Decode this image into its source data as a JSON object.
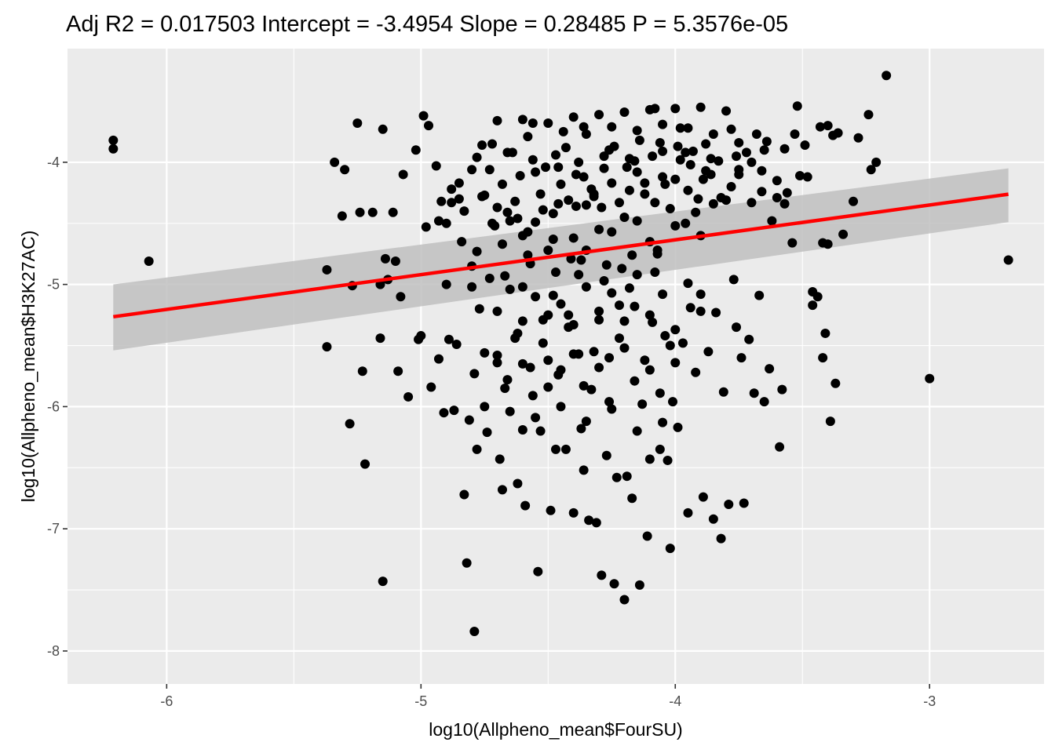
{
  "chart_data": {
    "type": "scatter",
    "title": "Adj R2 =  0.017503 Intercept = -3.4954  Slope = 0.28485  P = 5.3576e-05",
    "xlabel": "log10(Allpheno_mean$FourSU)",
    "ylabel": "log10(Allpheno_mean$H3K27AC)",
    "xlim": [
      -6.39,
      -2.55
    ],
    "ylim": [
      -8.27,
      -3.07
    ],
    "x_ticks": [
      -6,
      -5,
      -4,
      -3
    ],
    "x_tick_labels": [
      "-6",
      "-5",
      "-4",
      "-3"
    ],
    "y_ticks": [
      -8,
      -7,
      -6,
      -5,
      -4
    ],
    "y_tick_labels": [
      "-8",
      "-7",
      "-6",
      "-5",
      "-4"
    ],
    "grid": true,
    "colors": {
      "panel_background": "#ebebeb",
      "grid": "#ffffff",
      "points": "#000000",
      "fit_line": "#ff0000",
      "confidence_band": "#bfbfbf"
    },
    "fit": {
      "intercept": -3.4954,
      "slope": 0.28485,
      "x_range": [
        -6.21,
        -2.69
      ],
      "ci_lower": [
        -5.54,
        -4.49
      ],
      "ci_upper": [
        -5.0,
        -4.05
      ]
    },
    "points": [
      [
        -6.21,
        -3.82
      ],
      [
        -6.21,
        -3.89
      ],
      [
        -6.07,
        -4.81
      ],
      [
        -5.37,
        -4.88
      ],
      [
        -5.37,
        -5.51
      ],
      [
        -5.34,
        -4.0
      ],
      [
        -5.31,
        -4.44
      ],
      [
        -5.3,
        -4.06
      ],
      [
        -5.28,
        -6.14
      ],
      [
        -5.27,
        -5.01
      ],
      [
        -5.25,
        -3.68
      ],
      [
        -5.24,
        -4.41
      ],
      [
        -5.23,
        -5.71
      ],
      [
        -5.22,
        -6.47
      ],
      [
        -5.19,
        -4.41
      ],
      [
        -5.16,
        -5.0
      ],
      [
        -5.16,
        -5.44
      ],
      [
        -5.15,
        -3.73
      ],
      [
        -5.15,
        -7.43
      ],
      [
        -5.14,
        -4.79
      ],
      [
        -5.13,
        -4.96
      ],
      [
        -5.11,
        -4.41
      ],
      [
        -5.1,
        -4.81
      ],
      [
        -5.09,
        -5.71
      ],
      [
        -5.08,
        -5.1
      ],
      [
        -5.07,
        -4.1
      ],
      [
        -5.05,
        -5.92
      ],
      [
        -5.02,
        -3.9
      ],
      [
        -5.01,
        -5.45
      ],
      [
        -5.0,
        -5.42
      ],
      [
        -4.99,
        -3.62
      ],
      [
        -4.98,
        -4.53
      ],
      [
        -4.97,
        -3.7
      ],
      [
        -4.96,
        -5.84
      ],
      [
        -4.94,
        -4.03
      ],
      [
        -4.93,
        -5.61
      ],
      [
        -4.92,
        -4.32
      ],
      [
        -4.91,
        -6.05
      ],
      [
        -4.9,
        -4.5
      ],
      [
        -4.89,
        -5.45
      ],
      [
        -4.88,
        -4.22
      ],
      [
        -4.87,
        -6.03
      ],
      [
        -4.86,
        -5.49
      ],
      [
        -4.85,
        -4.3
      ],
      [
        -4.84,
        -4.65
      ],
      [
        -4.83,
        -6.72
      ],
      [
        -4.82,
        -7.28
      ],
      [
        -4.81,
        -6.11
      ],
      [
        -4.8,
        -4.85
      ],
      [
        -4.79,
        -5.73
      ],
      [
        -4.79,
        -7.84
      ],
      [
        -4.78,
        -6.35
      ],
      [
        -4.77,
        -5.2
      ],
      [
        -4.76,
        -4.28
      ],
      [
        -4.75,
        -5.56
      ],
      [
        -4.74,
        -6.21
      ],
      [
        -4.73,
        -4.95
      ],
      [
        -4.72,
        -3.85
      ],
      [
        -4.71,
        -4.52
      ],
      [
        -4.7,
        -5.64
      ],
      [
        -4.69,
        -6.43
      ],
      [
        -4.68,
        -6.68
      ],
      [
        -4.67,
        -5.85
      ],
      [
        -4.66,
        -4.41
      ],
      [
        -4.65,
        -5.04
      ],
      [
        -4.64,
        -3.92
      ],
      [
        -4.63,
        -5.44
      ],
      [
        -4.62,
        -6.63
      ],
      [
        -4.61,
        -4.11
      ],
      [
        -4.6,
        -6.19
      ],
      [
        -4.6,
        -5.02
      ],
      [
        -4.59,
        -6.81
      ],
      [
        -4.58,
        -4.57
      ],
      [
        -4.57,
        -5.68
      ],
      [
        -4.56,
        -3.68
      ],
      [
        -4.55,
        -4.49
      ],
      [
        -4.54,
        -7.35
      ],
      [
        -4.53,
        -6.2
      ],
      [
        -4.52,
        -5.29
      ],
      [
        -4.51,
        -4.04
      ],
      [
        -4.5,
        -5.84
      ],
      [
        -4.49,
        -6.85
      ],
      [
        -4.48,
        -5.09
      ],
      [
        -4.47,
        -6.35
      ],
      [
        -4.46,
        -4.34
      ],
      [
        -4.45,
        -5.7
      ],
      [
        -4.44,
        -3.75
      ],
      [
        -4.43,
        -6.35
      ],
      [
        -4.42,
        -5.25
      ],
      [
        -4.41,
        -4.79
      ],
      [
        -4.4,
        -6.87
      ],
      [
        -4.39,
        -4.36
      ],
      [
        -4.38,
        -5.57
      ],
      [
        -4.37,
        -6.18
      ],
      [
        -4.36,
        -3.71
      ],
      [
        -4.36,
        -6.52
      ],
      [
        -4.35,
        -4.72
      ],
      [
        -4.34,
        -6.93
      ],
      [
        -4.33,
        -5.86
      ],
      [
        -4.32,
        -4.26
      ],
      [
        -4.31,
        -6.95
      ],
      [
        -4.3,
        -5.29
      ],
      [
        -4.29,
        -7.38
      ],
      [
        -4.28,
        -4.05
      ],
      [
        -4.27,
        -6.4
      ],
      [
        -4.26,
        -5.6
      ],
      [
        -4.25,
        -4.57
      ],
      [
        -4.24,
        -7.45
      ],
      [
        -4.23,
        -6.58
      ],
      [
        -4.22,
        -5.17
      ],
      [
        -4.21,
        -4.87
      ],
      [
        -4.2,
        -7.58
      ],
      [
        -4.19,
        -6.57
      ],
      [
        -4.18,
        -3.97
      ],
      [
        -4.17,
        -6.75
      ],
      [
        -4.16,
        -5.18
      ],
      [
        -4.15,
        -4.48
      ],
      [
        -4.14,
        -7.46
      ],
      [
        -4.13,
        -5.98
      ],
      [
        -4.12,
        -4.17
      ],
      [
        -4.11,
        -7.06
      ],
      [
        -4.1,
        -6.43
      ],
      [
        -4.09,
        -5.31
      ],
      [
        -4.08,
        -3.56
      ],
      [
        -4.07,
        -4.75
      ],
      [
        -4.06,
        -6.35
      ],
      [
        -4.05,
        -3.91
      ],
      [
        -4.04,
        -5.42
      ],
      [
        -4.03,
        -6.44
      ],
      [
        -4.02,
        -7.16
      ],
      [
        -4.01,
        -5.96
      ],
      [
        -4.0,
        -4.14
      ],
      [
        -3.99,
        -6.17
      ],
      [
        -3.98,
        -3.72
      ],
      [
        -3.97,
        -5.48
      ],
      [
        -3.96,
        -4.5
      ],
      [
        -3.95,
        -6.87
      ],
      [
        -3.94,
        -5.19
      ],
      [
        -3.93,
        -3.91
      ],
      [
        -3.92,
        -5.72
      ],
      [
        -3.91,
        -4.3
      ],
      [
        -3.9,
        -5.08
      ],
      [
        -3.89,
        -6.74
      ],
      [
        -3.88,
        -3.85
      ],
      [
        -3.87,
        -5.55
      ],
      [
        -3.86,
        -4.1
      ],
      [
        -3.85,
        -6.92
      ],
      [
        -3.84,
        -5.23
      ],
      [
        -3.83,
        -3.99
      ],
      [
        -3.82,
        -7.08
      ],
      [
        -3.81,
        -5.88
      ],
      [
        -3.8,
        -4.31
      ],
      [
        -3.79,
        -6.8
      ],
      [
        -3.78,
        -3.73
      ],
      [
        -3.77,
        -4.96
      ],
      [
        -3.76,
        -5.35
      ],
      [
        -3.75,
        -4.06
      ],
      [
        -3.74,
        -5.6
      ],
      [
        -3.73,
        -6.79
      ],
      [
        -3.72,
        -3.92
      ],
      [
        -3.71,
        -5.45
      ],
      [
        -3.7,
        -4.33
      ],
      [
        -3.69,
        -5.89
      ],
      [
        -3.68,
        -3.77
      ],
      [
        -3.67,
        -5.09
      ],
      [
        -3.66,
        -4.24
      ],
      [
        -3.65,
        -5.96
      ],
      [
        -3.64,
        -3.83
      ],
      [
        -3.63,
        -5.69
      ],
      [
        -3.62,
        -4.48
      ],
      [
        -3.6,
        -4.29
      ],
      [
        -3.59,
        -6.33
      ],
      [
        -3.58,
        -5.86
      ],
      [
        -3.57,
        -3.89
      ],
      [
        -3.56,
        -4.25
      ],
      [
        -3.54,
        -4.66
      ],
      [
        -3.53,
        -3.77
      ],
      [
        -3.52,
        -3.54
      ],
      [
        -3.51,
        -4.11
      ],
      [
        -3.49,
        -3.86
      ],
      [
        -3.48,
        -4.12
      ],
      [
        -3.46,
        -5.06
      ],
      [
        -3.46,
        -5.17
      ],
      [
        -3.44,
        -5.1
      ],
      [
        -3.43,
        -3.71
      ],
      [
        -3.42,
        -5.6
      ],
      [
        -3.42,
        -4.66
      ],
      [
        -3.41,
        -5.4
      ],
      [
        -3.4,
        -4.67
      ],
      [
        -3.4,
        -3.7
      ],
      [
        -3.39,
        -6.12
      ],
      [
        -3.38,
        -3.78
      ],
      [
        -3.37,
        -5.81
      ],
      [
        -3.36,
        -3.76
      ],
      [
        -3.34,
        -4.59
      ],
      [
        -3.3,
        -4.32
      ],
      [
        -3.28,
        -3.8
      ],
      [
        -3.24,
        -3.61
      ],
      [
        -3.23,
        -4.06
      ],
      [
        -3.21,
        -4.0
      ],
      [
        -3.17,
        -3.29
      ],
      [
        -3.0,
        -5.77
      ],
      [
        -2.69,
        -4.8
      ],
      [
        -4.58,
        -3.79
      ],
      [
        -4.47,
        -3.94
      ],
      [
        -4.39,
        -4.1
      ],
      [
        -4.33,
        -4.22
      ],
      [
        -4.29,
        -4.37
      ],
      [
        -4.24,
        -3.87
      ],
      [
        -4.19,
        -4.04
      ],
      [
        -4.14,
        -3.82
      ],
      [
        -4.09,
        -3.95
      ],
      [
        -4.04,
        -4.18
      ],
      [
        -3.99,
        -3.87
      ],
      [
        -3.94,
        -4.02
      ],
      [
        -3.89,
        -4.14
      ],
      [
        -4.53,
        -4.26
      ],
      [
        -4.48,
        -4.42
      ],
      [
        -4.43,
        -3.88
      ],
      [
        -4.38,
        -4.0
      ],
      [
        -4.28,
        -3.95
      ],
      [
        -4.18,
        -4.23
      ],
      [
        -4.08,
        -4.33
      ],
      [
        -3.98,
        -3.98
      ],
      [
        -3.88,
        -4.07
      ],
      [
        -3.78,
        -4.2
      ],
      [
        -4.63,
        -4.32
      ],
      [
        -4.68,
        -4.18
      ],
      [
        -4.73,
        -4.06
      ],
      [
        -4.78,
        -3.96
      ],
      [
        -4.83,
        -4.4
      ],
      [
        -4.88,
        -4.33
      ],
      [
        -4.93,
        -4.48
      ],
      [
        -4.6,
        -4.6
      ],
      [
        -4.5,
        -4.72
      ],
      [
        -4.4,
        -4.62
      ],
      [
        -4.3,
        -4.55
      ],
      [
        -4.2,
        -4.45
      ],
      [
        -4.1,
        -4.65
      ],
      [
        -4.0,
        -4.52
      ],
      [
        -3.9,
        -4.6
      ],
      [
        -4.55,
        -5.1
      ],
      [
        -4.45,
        -5.16
      ],
      [
        -4.35,
        -5.02
      ],
      [
        -4.25,
        -5.07
      ],
      [
        -4.15,
        -4.92
      ],
      [
        -4.05,
        -5.08
      ],
      [
        -3.95,
        -4.99
      ],
      [
        -4.62,
        -5.4
      ],
      [
        -4.52,
        -5.48
      ],
      [
        -4.42,
        -5.35
      ],
      [
        -4.32,
        -5.55
      ],
      [
        -4.22,
        -5.44
      ],
      [
        -4.12,
        -5.62
      ],
      [
        -4.02,
        -5.5
      ],
      [
        -4.66,
        -5.78
      ],
      [
        -4.56,
        -5.91
      ],
      [
        -4.46,
        -5.74
      ],
      [
        -4.36,
        -5.83
      ],
      [
        -4.26,
        -5.96
      ],
      [
        -4.16,
        -5.79
      ],
      [
        -4.06,
        -5.89
      ],
      [
        -4.7,
        -3.66
      ],
      [
        -4.6,
        -3.65
      ],
      [
        -4.5,
        -3.68
      ],
      [
        -4.4,
        -3.63
      ],
      [
        -4.3,
        -3.61
      ],
      [
        -4.2,
        -3.59
      ],
      [
        -4.1,
        -3.57
      ],
      [
        -4.0,
        -3.56
      ],
      [
        -3.9,
        -3.55
      ],
      [
        -3.8,
        -3.58
      ],
      [
        -4.67,
        -4.93
      ],
      [
        -4.57,
        -4.83
      ],
      [
        -4.47,
        -4.9
      ],
      [
        -4.37,
        -4.8
      ],
      [
        -4.27,
        -4.84
      ],
      [
        -4.17,
        -4.76
      ],
      [
        -4.07,
        -4.72
      ],
      [
        -4.72,
        -4.5
      ],
      [
        -4.62,
        -4.46
      ],
      [
        -4.52,
        -4.39
      ],
      [
        -4.42,
        -4.31
      ],
      [
        -4.32,
        -4.28
      ],
      [
        -4.22,
        -4.33
      ],
      [
        -4.12,
        -4.26
      ],
      [
        -4.02,
        -4.38
      ],
      [
        -3.92,
        -4.41
      ],
      [
        -3.82,
        -4.29
      ],
      [
        -4.35,
        -3.77
      ],
      [
        -4.25,
        -3.71
      ],
      [
        -4.15,
        -3.74
      ],
      [
        -4.05,
        -3.69
      ],
      [
        -3.95,
        -3.72
      ],
      [
        -3.85,
        -3.77
      ],
      [
        -3.75,
        -3.84
      ],
      [
        -3.65,
        -3.9
      ],
      [
        -4.85,
        -4.17
      ],
      [
        -4.8,
        -4.06
      ],
      [
        -4.75,
        -4.27
      ],
      [
        -4.7,
        -4.37
      ],
      [
        -4.65,
        -4.48
      ],
      [
        -4.55,
        -4.08
      ],
      [
        -4.45,
        -4.18
      ],
      [
        -4.35,
        -4.35
      ],
      [
        -4.25,
        -4.17
      ],
      [
        -4.15,
        -4.08
      ],
      [
        -4.05,
        -4.12
      ],
      [
        -3.95,
        -4.23
      ],
      [
        -3.85,
        -4.34
      ],
      [
        -3.75,
        -4.1
      ],
      [
        -3.7,
        -4.0
      ],
      [
        -4.9,
        -5.0
      ],
      [
        -4.8,
        -5.02
      ],
      [
        -4.7,
        -5.22
      ],
      [
        -4.6,
        -5.3
      ],
      [
        -4.5,
        -5.25
      ],
      [
        -4.4,
        -5.33
      ],
      [
        -4.3,
        -5.22
      ],
      [
        -4.2,
        -5.3
      ],
      [
        -4.1,
        -5.25
      ],
      [
        -4.0,
        -5.37
      ],
      [
        -3.9,
        -5.22
      ],
      [
        -4.7,
        -5.58
      ],
      [
        -4.6,
        -5.65
      ],
      [
        -4.5,
        -5.62
      ],
      [
        -4.4,
        -5.57
      ],
      [
        -4.3,
        -5.68
      ],
      [
        -4.2,
        -5.52
      ],
      [
        -4.1,
        -5.7
      ],
      [
        -4.0,
        -5.64
      ],
      [
        -4.75,
        -6.0
      ],
      [
        -4.65,
        -6.04
      ],
      [
        -4.55,
        -6.09
      ],
      [
        -4.45,
        -6.0
      ],
      [
        -4.35,
        -6.12
      ],
      [
        -4.25,
        -6.02
      ],
      [
        -4.15,
        -6.2
      ],
      [
        -4.05,
        -6.13
      ],
      [
        -4.38,
        -4.92
      ],
      [
        -4.28,
        -4.97
      ],
      [
        -4.18,
        -5.03
      ],
      [
        -4.08,
        -4.9
      ],
      [
        -4.78,
        -4.73
      ],
      [
        -4.68,
        -4.67
      ],
      [
        -4.58,
        -4.76
      ],
      [
        -4.48,
        -4.63
      ],
      [
        -4.76,
        -3.86
      ],
      [
        -4.66,
        -3.92
      ],
      [
        -4.56,
        -3.98
      ],
      [
        -4.46,
        -4.04
      ],
      [
        -4.36,
        -4.12
      ],
      [
        -4.26,
        -3.9
      ],
      [
        -4.16,
        -3.99
      ],
      [
        -4.06,
        -3.84
      ],
      [
        -3.96,
        -3.92
      ],
      [
        -3.86,
        -3.97
      ],
      [
        -3.76,
        -3.95
      ],
      [
        -3.66,
        -4.07
      ],
      [
        -3.6,
        -4.15
      ],
      [
        -3.57,
        -4.34
      ]
    ]
  }
}
